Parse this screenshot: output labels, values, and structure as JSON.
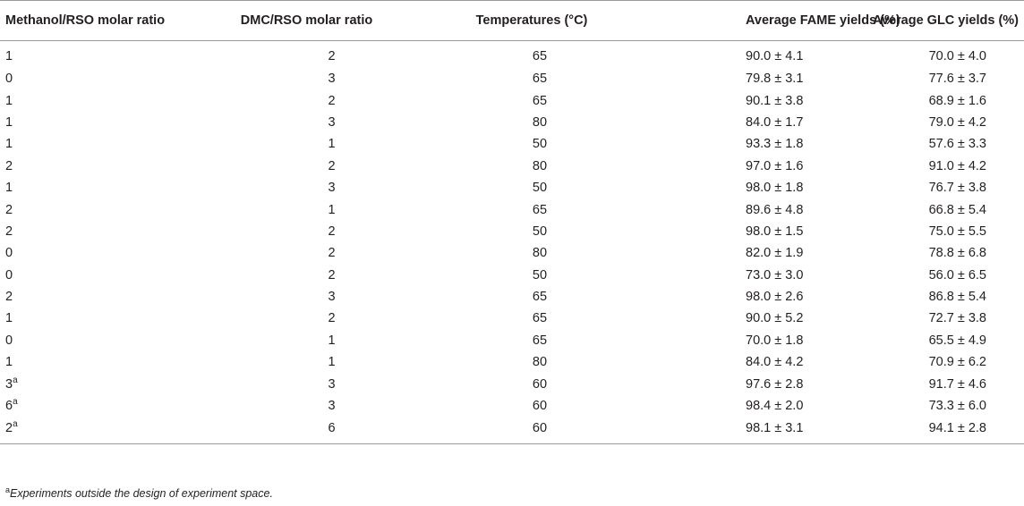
{
  "table": {
    "headers": [
      "Methanol/RSO molar ratio",
      "DMC/RSO molar ratio",
      "Temperatures (°C)",
      "Average FAME yields (%)",
      "Average GLC yields (%)"
    ],
    "rows": [
      {
        "methanol": "1",
        "methanol_sup": "",
        "dmc": "2",
        "temp": "65",
        "fame": "90.0 ± 4.1",
        "glc": "70.0 ± 4.0"
      },
      {
        "methanol": "0",
        "methanol_sup": "",
        "dmc": "3",
        "temp": "65",
        "fame": "79.8 ± 3.1",
        "glc": "77.6 ± 3.7"
      },
      {
        "methanol": "1",
        "methanol_sup": "",
        "dmc": "2",
        "temp": "65",
        "fame": "90.1 ± 3.8",
        "glc": "68.9 ± 1.6"
      },
      {
        "methanol": "1",
        "methanol_sup": "",
        "dmc": "3",
        "temp": "80",
        "fame": "84.0 ± 1.7",
        "glc": "79.0 ± 4.2"
      },
      {
        "methanol": "1",
        "methanol_sup": "",
        "dmc": "1",
        "temp": "50",
        "fame": "93.3 ± 1.8",
        "glc": "57.6 ± 3.3"
      },
      {
        "methanol": "2",
        "methanol_sup": "",
        "dmc": "2",
        "temp": "80",
        "fame": "97.0 ± 1.6",
        "glc": "91.0 ± 4.2"
      },
      {
        "methanol": "1",
        "methanol_sup": "",
        "dmc": "3",
        "temp": "50",
        "fame": "98.0 ± 1.8",
        "glc": "76.7 ± 3.8"
      },
      {
        "methanol": "2",
        "methanol_sup": "",
        "dmc": "1",
        "temp": "65",
        "fame": "89.6 ± 4.8",
        "glc": "66.8 ± 5.4"
      },
      {
        "methanol": "2",
        "methanol_sup": "",
        "dmc": "2",
        "temp": "50",
        "fame": "98.0 ± 1.5",
        "glc": "75.0 ± 5.5"
      },
      {
        "methanol": "0",
        "methanol_sup": "",
        "dmc": "2",
        "temp": "80",
        "fame": "82.0 ± 1.9",
        "glc": "78.8 ± 6.8"
      },
      {
        "methanol": "0",
        "methanol_sup": "",
        "dmc": "2",
        "temp": "50",
        "fame": "73.0 ± 3.0",
        "glc": "56.0 ± 6.5"
      },
      {
        "methanol": "2",
        "methanol_sup": "",
        "dmc": "3",
        "temp": "65",
        "fame": "98.0 ± 2.6",
        "glc": "86.8 ± 5.4"
      },
      {
        "methanol": "1",
        "methanol_sup": "",
        "dmc": "2",
        "temp": "65",
        "fame": "90.0 ± 5.2",
        "glc": "72.7 ± 3.8"
      },
      {
        "methanol": "0",
        "methanol_sup": "",
        "dmc": "1",
        "temp": "65",
        "fame": "70.0 ± 1.8",
        "glc": "65.5 ± 4.9"
      },
      {
        "methanol": "1",
        "methanol_sup": "",
        "dmc": "1",
        "temp": "80",
        "fame": "84.0 ± 4.2",
        "glc": "70.9 ± 6.2"
      },
      {
        "methanol": "3",
        "methanol_sup": "a",
        "dmc": "3",
        "temp": "60",
        "fame": "97.6 ± 2.8",
        "glc": "91.7 ± 4.6"
      },
      {
        "methanol": "6",
        "methanol_sup": "a",
        "dmc": "3",
        "temp": "60",
        "fame": "98.4 ± 2.0",
        "glc": "73.3 ± 6.0"
      },
      {
        "methanol": "2",
        "methanol_sup": "a",
        "dmc": "6",
        "temp": "60",
        "fame": "98.1 ± 3.1",
        "glc": "94.1 ± 2.8"
      }
    ]
  },
  "footnote": {
    "marker": "a",
    "text": "Experiments outside the design of experiment space."
  }
}
